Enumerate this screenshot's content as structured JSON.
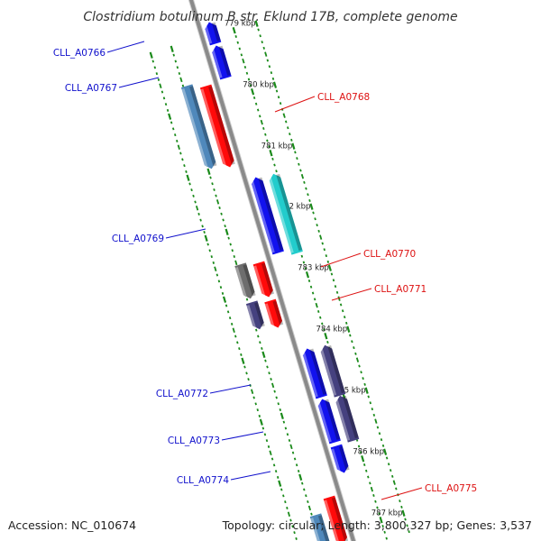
{
  "title": "Clostridium botulinum B str. Eklund 17B, complete genome",
  "footer": {
    "accession": "Accession: NC_010674",
    "info": "Topology: circular; Length: 3,800,327 bp; Genes: 3,537"
  },
  "colors": {
    "backbone": "#8a8a8a",
    "reverse_label": "#1010cc",
    "forward_label": "#dd1111",
    "tick_dot": "#1a8a1a",
    "red": "#ff0a0a",
    "steel_blue": "#4f88bb",
    "cyan": "#22cccc",
    "blue": "#1212ee",
    "slate": "#45417f",
    "gray": "#6d6d6d"
  },
  "ticks": [
    {
      "label": "779 kbp",
      "kbp": 779
    },
    {
      "label": "780 kbp",
      "kbp": 780
    },
    {
      "label": "781 kbp",
      "kbp": 781
    },
    {
      "label": "782 kbp",
      "kbp": 782
    },
    {
      "label": "783 kbp",
      "kbp": 783
    },
    {
      "label": "784 kbp",
      "kbp": 784
    },
    {
      "label": "785 kbp",
      "kbp": 785
    },
    {
      "label": "786 kbp",
      "kbp": 786
    },
    {
      "label": "787 kbp",
      "kbp": 787
    }
  ],
  "genes": [
    {
      "id": "CLL_A0766",
      "label": "CLL_A0766",
      "strand": "reverse"
    },
    {
      "id": "CLL_A0767",
      "label": "CLL_A0767",
      "strand": "reverse"
    },
    {
      "id": "CLL_A0768",
      "label": "CLL_A0768",
      "strand": "forward"
    },
    {
      "id": "CLL_A0769",
      "label": "CLL_A0769",
      "strand": "reverse"
    },
    {
      "id": "CLL_A0770",
      "label": "CLL_A0770",
      "strand": "forward"
    },
    {
      "id": "CLL_A0771",
      "label": "CLL_A0771",
      "strand": "forward"
    },
    {
      "id": "CLL_A0772",
      "label": "CLL_A0772",
      "strand": "reverse"
    },
    {
      "id": "CLL_A0773",
      "label": "CLL_A0773",
      "strand": "reverse"
    },
    {
      "id": "CLL_A0774",
      "label": "CLL_A0774",
      "strand": "reverse"
    },
    {
      "id": "CLL_A0775",
      "label": "CLL_A0775",
      "strand": "forward"
    }
  ]
}
